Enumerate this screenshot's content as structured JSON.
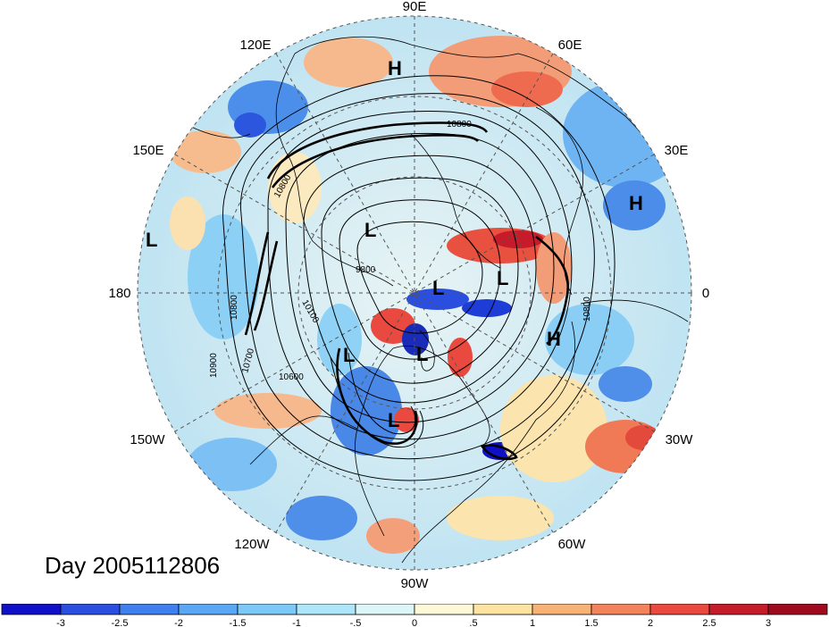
{
  "map": {
    "projection": "polar-stereographic-north",
    "longitude_labels": [
      "90E",
      "60E",
      "30E",
      "0",
      "30W",
      "60W",
      "90W",
      "120W",
      "150W",
      "180",
      "150E",
      "120E"
    ],
    "contour_labels": [
      "10800",
      "9800",
      "10100",
      "10800",
      "10900",
      "10700",
      "10600",
      "10800",
      "10800"
    ],
    "highs_lows": [
      {
        "type": "H",
        "text": "H"
      },
      {
        "type": "H",
        "text": "H"
      },
      {
        "type": "H",
        "text": "H"
      },
      {
        "type": "L",
        "text": "L"
      },
      {
        "type": "L",
        "text": "L"
      },
      {
        "type": "L",
        "text": "L"
      },
      {
        "type": "L",
        "text": "L"
      },
      {
        "type": "L",
        "text": "L"
      },
      {
        "type": "L",
        "text": "L"
      },
      {
        "type": "L",
        "text": "L"
      }
    ]
  },
  "day_label": "Day 2005112806",
  "colorbar": {
    "tick_labels": [
      "-3",
      "-2.5",
      "-2",
      "-1.5",
      "-1",
      "-.5",
      "0",
      ".5",
      "1",
      "1.5",
      "2",
      "2.5",
      "3"
    ],
    "colors": [
      "#1010c8",
      "#2a4fe0",
      "#3f7fee",
      "#5aa7f5",
      "#7cc8f7",
      "#ade6f9",
      "#dcf6f8",
      "#fdf8d8",
      "#fde3a2",
      "#f8b275",
      "#f3835b",
      "#e9493e",
      "#c51b2a",
      "#a00a1e"
    ]
  }
}
